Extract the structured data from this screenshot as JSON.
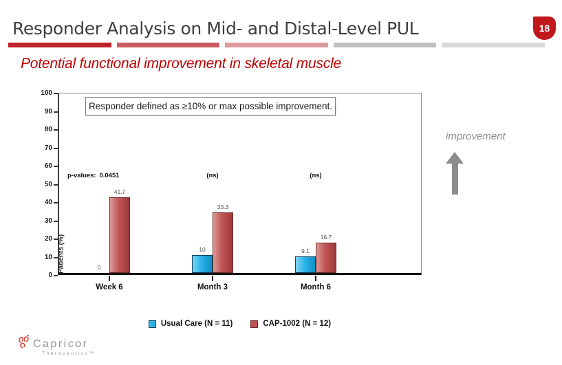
{
  "header": {
    "title": "Responder Analysis on Mid- and Distal-Level PUL",
    "page_number": "18",
    "badge_color": "#c1181e",
    "accent_bar_colors": [
      "#bf2228",
      "#cb5a60",
      "#df9a9d",
      "#bfbfbf",
      "#d9d9d9"
    ]
  },
  "subtitle": {
    "text": "Potential functional improvement in skeletal muscle",
    "color": "#c00000"
  },
  "chart_data": {
    "type": "bar",
    "annotation": "Responder defined as ≥10% or max possible improvement.",
    "ylabel": "Patients (%)",
    "ylim": [
      0,
      100
    ],
    "ytick_step": 10,
    "grid": false,
    "legend_position": "bottom",
    "categories": [
      "Week 6",
      "Month 3",
      "Month 6"
    ],
    "series": [
      {
        "name": "Usual Care (N = 11)",
        "values": [
          0,
          10,
          9.1
        ],
        "value_labels": [
          "0",
          "10",
          "9.1"
        ],
        "color": "#2bb3e8",
        "color_light": "#7fd4f4",
        "color_dark": "#0f8fc4",
        "border": "#0d455e"
      },
      {
        "name": "CAP-1002 (N = 12)",
        "values": [
          41.7,
          33.3,
          16.7
        ],
        "value_labels": [
          "41.7",
          "33.3",
          "16.7"
        ],
        "color": "#c05454",
        "color_light": "#db9a98",
        "color_dark": "#9e3a3c",
        "border": "#6b2a2b"
      }
    ],
    "p_values_label": "p-values:",
    "p_values": [
      "0.0451",
      "(ns)",
      "(ns)"
    ]
  },
  "side_note": {
    "text": "improvement",
    "arrow": "up",
    "color": "#8c8c8c"
  },
  "footer": {
    "logo_name": "Capricor",
    "logo_sub": "Therapeutics™",
    "logo_color": "#d23a34"
  }
}
